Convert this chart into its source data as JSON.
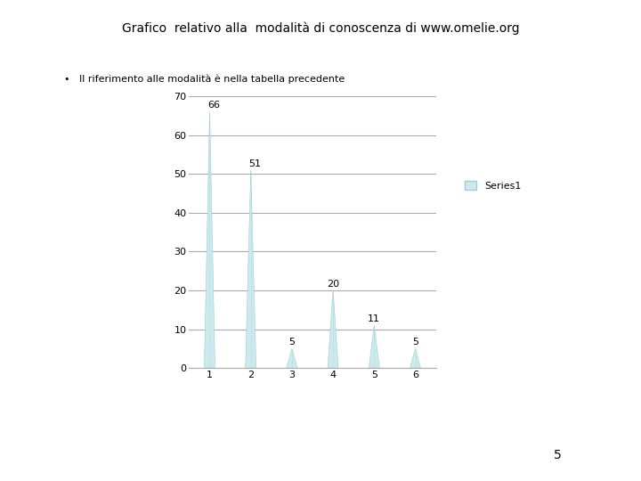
{
  "title": "Grafico  relativo alla  modalità di conoscenza di www.omelie.org",
  "bullet_text": "Il riferimento alle modalità è nella tabella precedente",
  "categories": [
    1,
    2,
    3,
    4,
    5,
    6
  ],
  "values": [
    66,
    51,
    5,
    20,
    11,
    5
  ],
  "ylim": [
    0,
    70
  ],
  "yticks": [
    0,
    10,
    20,
    30,
    40,
    50,
    60,
    70
  ],
  "bar_color": "#cce9ed",
  "bar_edge_color": "#9ecdd4",
  "legend_label": "Series1",
  "legend_color": "#cce9ed",
  "grid_color": "#aaaaaa",
  "title_fontsize": 10,
  "bullet_fontsize": 8,
  "annotation_fontsize": 8,
  "tick_fontsize": 8,
  "legend_fontsize": 8,
  "footnote": "5",
  "footnote_fontsize": 10,
  "bg_color": "#ffffff",
  "spike_halfwidth": 0.13
}
